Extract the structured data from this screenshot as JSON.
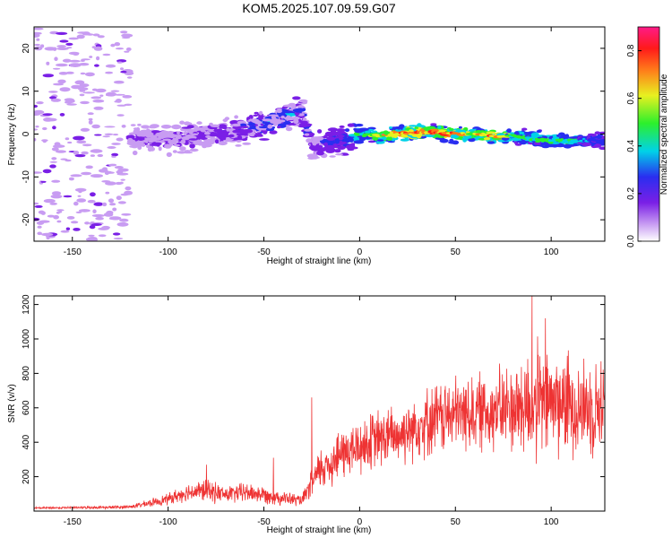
{
  "title": "KOM5.2025.107.09.59.G07",
  "chart_data": [
    {
      "type": "heatmap",
      "xlabel": "Height of straight line (km)",
      "ylabel": "Frequency (Hz)",
      "xlim": [
        -170,
        128
      ],
      "ylim": [
        -25,
        25
      ],
      "xticks": [
        -150,
        -100,
        -50,
        0,
        50,
        100
      ],
      "yticks": [
        -20,
        -10,
        0,
        10,
        20
      ],
      "colorbar": {
        "label": "Normalized spectral amplitude",
        "range": [
          0,
          0.9
        ],
        "ticks": [
          0.0,
          0.2,
          0.4,
          0.6,
          0.8
        ],
        "colormap": "rainbow (white-purple-blue-cyan-green-yellow-red-magenta)"
      },
      "ridge": {
        "description": "dominant frequency trace",
        "x": [
          -120,
          -100,
          -80,
          -60,
          -50,
          -40,
          -30,
          -25,
          -20,
          -10,
          0,
          10,
          20,
          30,
          40,
          50,
          60,
          70,
          80,
          90,
          100,
          110,
          120,
          128
        ],
        "y": [
          -1.0,
          -1.5,
          0.0,
          1.0,
          2.5,
          4.0,
          5.0,
          -3.0,
          -2.5,
          -1.5,
          0.0,
          -0.5,
          0.0,
          0.3,
          0.5,
          0.0,
          0.0,
          -0.5,
          -0.5,
          -1.0,
          -1.5,
          -1.5,
          -1.5,
          -1.5
        ],
        "amplitude": [
          0.1,
          0.15,
          0.15,
          0.25,
          0.3,
          0.3,
          0.3,
          0.15,
          0.2,
          0.25,
          0.45,
          0.6,
          0.7,
          0.75,
          0.7,
          0.75,
          0.6,
          0.7,
          0.5,
          0.45,
          0.5,
          0.45,
          0.3,
          0.3
        ]
      },
      "noise_region": {
        "x_range": [
          -170,
          -120
        ],
        "y_range": [
          -25,
          25
        ],
        "amplitude": "low (~0.05)"
      }
    },
    {
      "type": "line",
      "xlabel": "Height of straight line (km)",
      "ylabel": "SNR (v/v)",
      "xlim": [
        -170,
        128
      ],
      "ylim": [
        0,
        1250
      ],
      "xticks": [
        -150,
        -100,
        -50,
        0,
        50,
        100
      ],
      "yticks": [
        200,
        400,
        600,
        800,
        1000,
        1200
      ],
      "color": "#ee3333",
      "series": [
        {
          "x": [
            -170,
            -150,
            -130,
            -120,
            -110,
            -100,
            -90,
            -80,
            -70,
            -60,
            -50,
            -40,
            -30,
            -25,
            -20,
            -15,
            -10,
            -5,
            0,
            10,
            20,
            30,
            40,
            50,
            60,
            70,
            80,
            90,
            100,
            110,
            120,
            128
          ],
          "mean": [
            18,
            20,
            22,
            25,
            45,
            70,
            110,
            120,
            95,
            110,
            95,
            75,
            60,
            160,
            250,
            280,
            330,
            350,
            370,
            420,
            440,
            500,
            540,
            560,
            575,
            585,
            600,
            620,
            640,
            620,
            600,
            620
          ],
          "spread": [
            8,
            8,
            10,
            12,
            25,
            40,
            60,
            80,
            60,
            70,
            60,
            50,
            40,
            100,
            160,
            170,
            180,
            190,
            200,
            210,
            210,
            230,
            250,
            260,
            270,
            280,
            320,
            420,
            380,
            360,
            330,
            320
          ],
          "peak_annotations": [
            {
              "x": -80,
              "y": 270
            },
            {
              "x": -45,
              "y": 310
            },
            {
              "x": -25,
              "y": 660
            },
            {
              "x": 90,
              "y": 1250
            },
            {
              "x": 97,
              "y": 1120
            }
          ]
        }
      ]
    }
  ]
}
